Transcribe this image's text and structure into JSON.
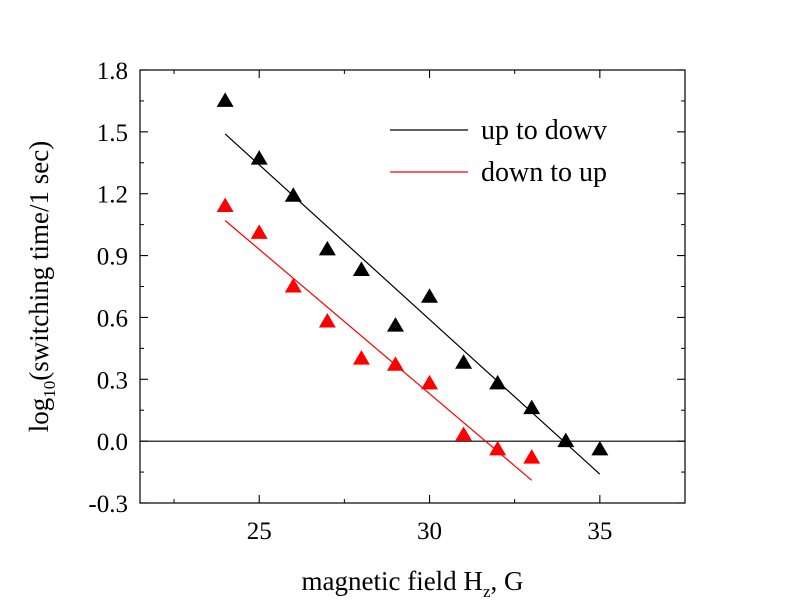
{
  "chart_data": {
    "type": "scatter",
    "xlabel_main": "magnetic field H",
    "xlabel_sub": "z",
    "xlabel_tail": ", G",
    "ylabel_pre": "log",
    "ylabel_sub": "10",
    "ylabel_tail": "(switching time/1 sec)",
    "xlim": [
      21.5,
      37.5
    ],
    "ylim": [
      -0.3,
      1.8
    ],
    "x_ticks": [
      25,
      30,
      35
    ],
    "x_tick_labels": [
      "25",
      "30",
      "35"
    ],
    "y_ticks": [
      -0.3,
      0.0,
      0.3,
      0.6,
      0.9,
      1.2,
      1.5,
      1.8
    ],
    "y_tick_labels": [
      "-0.3",
      "0.0",
      "0.3",
      "0.6",
      "0.9",
      "1.2",
      "1.5",
      "1.8"
    ],
    "reference_line_y": 0.0,
    "legend_position": "top-right",
    "series": [
      {
        "name": "up to dowv",
        "color": "#000000",
        "x": [
          24,
          25,
          26,
          27,
          28,
          29,
          30,
          31,
          32,
          33,
          34,
          35
        ],
        "y": [
          1.65,
          1.37,
          1.19,
          0.93,
          0.83,
          0.56,
          0.7,
          0.38,
          0.28,
          0.16,
          0.0,
          -0.04
        ],
        "fit": {
          "x": [
            24,
            35
          ],
          "y": [
            1.49,
            -0.16
          ]
        }
      },
      {
        "name": "down to up",
        "color": "#ff0000",
        "x": [
          24,
          25,
          26,
          27,
          28,
          29,
          30,
          31,
          32,
          33
        ],
        "y": [
          1.14,
          1.01,
          0.75,
          0.58,
          0.4,
          0.37,
          0.28,
          0.03,
          -0.04,
          -0.08
        ],
        "fit": {
          "x": [
            24,
            33
          ],
          "y": [
            1.07,
            -0.19
          ]
        }
      }
    ]
  }
}
